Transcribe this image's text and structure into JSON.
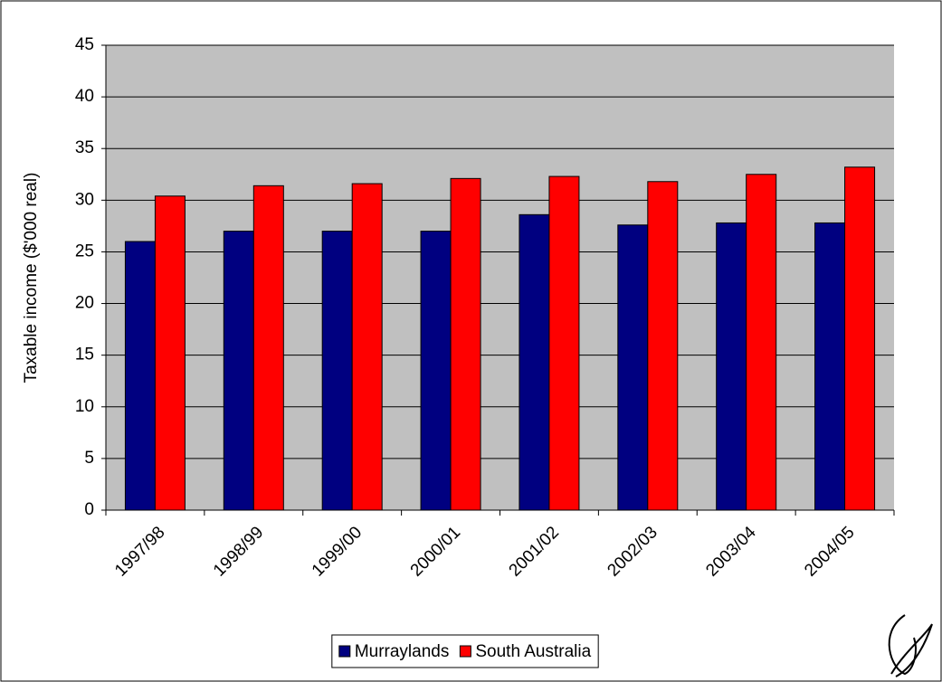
{
  "chart_data": {
    "type": "bar",
    "categories": [
      "1997/98",
      "1998/99",
      "1999/00",
      "2000/01",
      "2001/02",
      "2002/03",
      "2003/04",
      "2004/05"
    ],
    "series": [
      {
        "name": "Murraylands",
        "color": "#000080",
        "values": [
          26,
          27,
          27,
          27,
          28.6,
          27.6,
          27.8,
          27.8
        ]
      },
      {
        "name": "South Australia",
        "color": "#ff0000",
        "values": [
          30.4,
          31.4,
          31.6,
          32.1,
          32.3,
          31.8,
          32.5,
          33.2
        ]
      }
    ],
    "y_label": "Taxable income ($'000 real)",
    "ylim": [
      0,
      45
    ],
    "yticks": [
      0,
      5,
      10,
      15,
      20,
      25,
      30,
      35,
      40,
      45
    ],
    "grid": true,
    "legend": "bottom"
  }
}
